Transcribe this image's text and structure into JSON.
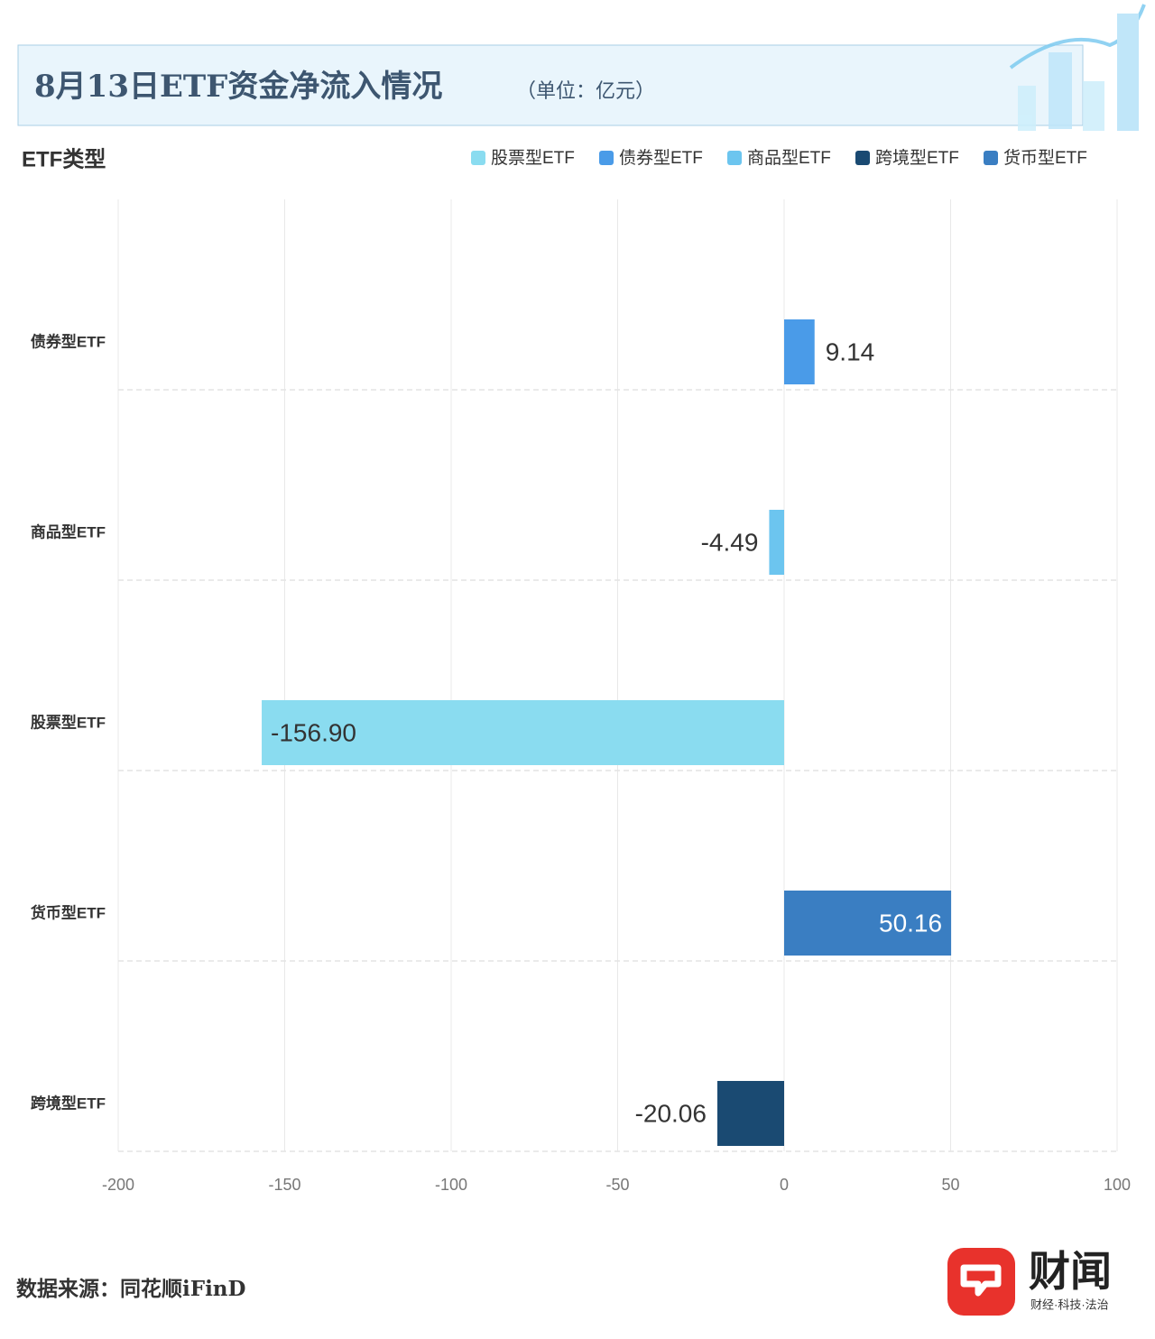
{
  "chart_data": {
    "type": "hbar",
    "title": "8月13日ETF资金净流入情况",
    "subtitle": "（单位：亿元）",
    "y_label": "ETF类型",
    "categories": [
      "债券型ETF",
      "商品型ETF",
      "股票型ETF",
      "货币型ETF",
      "跨境型ETF"
    ],
    "series": [
      {
        "name": "股票型ETF",
        "color": "#8adcf0",
        "values": [
          null,
          null,
          -156.9,
          null,
          null
        ],
        "value_labels": [
          null,
          null,
          "-156.90",
          null,
          null
        ]
      },
      {
        "name": "债券型ETF",
        "color": "#4a9be8",
        "values": [
          9.14,
          null,
          null,
          null,
          null
        ],
        "value_labels": [
          "9.14",
          null,
          null,
          null,
          null
        ]
      },
      {
        "name": "商品型ETF",
        "color": "#6cc5ef",
        "values": [
          null,
          -4.49,
          null,
          null,
          null
        ],
        "value_labels": [
          null,
          "-4.49",
          null,
          null,
          null
        ]
      },
      {
        "name": "跨境型ETF",
        "color": "#1a4a72",
        "values": [
          null,
          null,
          null,
          null,
          -20.06
        ],
        "value_labels": [
          null,
          null,
          null,
          null,
          "-20.06"
        ]
      },
      {
        "name": "货币型ETF",
        "color": "#3a7ec2",
        "values": [
          null,
          null,
          null,
          50.16,
          null
        ],
        "value_labels": [
          null,
          null,
          null,
          "50.16",
          null
        ]
      }
    ],
    "xlim": [
      -200,
      100
    ],
    "xticks": [
      -200,
      -150,
      -100,
      -50,
      0,
      50,
      100
    ],
    "grid": true
  },
  "footer": {
    "source": "数据来源：同花顺iFinD",
    "brand": "财闻",
    "slogan": "财经·科技·法治"
  }
}
